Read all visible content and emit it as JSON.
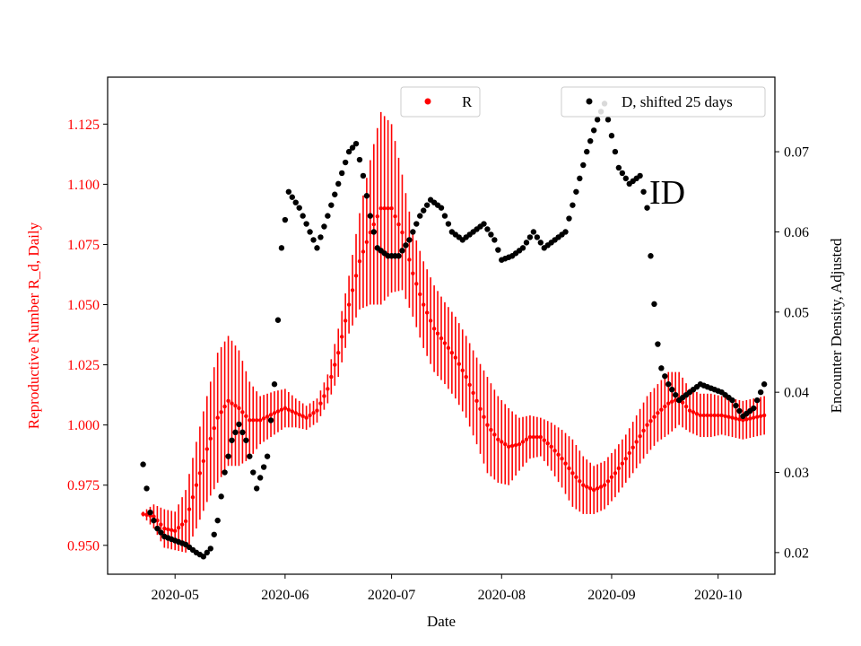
{
  "chart_data": {
    "type": "scatter",
    "title": "",
    "annotation": "ID",
    "xlabel": "Date",
    "ylabel_left": "Reproductive Number R_d, Daily",
    "ylabel_right": "Encounter Density, Adjusted",
    "x_range": [
      "2020-04-12",
      "2020-10-17"
    ],
    "x_ticks": [
      "2020-05",
      "2020-06",
      "2020-07",
      "2020-08",
      "2020-09",
      "2020-10"
    ],
    "x_tick_dates": [
      "2020-05-01",
      "2020-06-01",
      "2020-07-01",
      "2020-08-01",
      "2020-09-01",
      "2020-10-01"
    ],
    "ylim_left": [
      0.938,
      1.1445
    ],
    "yticks_left": [
      0.95,
      0.975,
      1.0,
      1.025,
      1.05,
      1.075,
      1.1,
      1.125
    ],
    "ylim_right": [
      0.0173,
      0.0793
    ],
    "yticks_right": [
      0.02,
      0.03,
      0.04,
      0.05,
      0.06,
      0.07
    ],
    "left_axis_color": "#ff0000",
    "right_axis_color": "#000000",
    "series_R_color": "#ff0000",
    "series_D_color": "#000000",
    "legend_R": {
      "label": "R",
      "placement": "top-center"
    },
    "legend_D": {
      "label": "D, shifted 25 days",
      "placement": "top-right"
    },
    "series_R": {
      "name": "R",
      "start": "2020-04-22",
      "end": "2020-10-14",
      "anchors": [
        [
          "2020-04-22",
          0.963,
          0.001
        ],
        [
          "2020-04-25",
          0.962,
          0.005
        ],
        [
          "2020-04-28",
          0.957,
          0.008
        ],
        [
          "2020-05-01",
          0.956,
          0.008
        ],
        [
          "2020-05-04",
          0.96,
          0.013
        ],
        [
          "2020-05-07",
          0.975,
          0.018
        ],
        [
          "2020-05-10",
          0.99,
          0.022
        ],
        [
          "2020-05-13",
          1.003,
          0.027
        ],
        [
          "2020-05-16",
          1.01,
          0.027
        ],
        [
          "2020-05-19",
          1.007,
          0.024
        ],
        [
          "2020-05-22",
          1.002,
          0.016
        ],
        [
          "2020-05-25",
          1.002,
          0.01
        ],
        [
          "2020-05-29",
          1.005,
          0.009
        ],
        [
          "2020-06-01",
          1.007,
          0.008
        ],
        [
          "2020-06-04",
          1.005,
          0.006
        ],
        [
          "2020-06-07",
          1.003,
          0.005
        ],
        [
          "2020-06-10",
          1.006,
          0.005
        ],
        [
          "2020-06-13",
          1.015,
          0.006
        ],
        [
          "2020-06-16",
          1.03,
          0.01
        ],
        [
          "2020-06-19",
          1.05,
          0.012
        ],
        [
          "2020-06-22",
          1.068,
          0.02
        ],
        [
          "2020-06-25",
          1.08,
          0.03
        ],
        [
          "2020-06-28",
          1.09,
          0.04
        ],
        [
          "2020-07-01",
          1.09,
          0.035
        ],
        [
          "2020-07-04",
          1.08,
          0.024
        ],
        [
          "2020-07-07",
          1.063,
          0.018
        ],
        [
          "2020-07-10",
          1.05,
          0.018
        ],
        [
          "2020-07-13",
          1.04,
          0.018
        ],
        [
          "2020-07-16",
          1.034,
          0.017
        ],
        [
          "2020-07-19",
          1.028,
          0.017
        ],
        [
          "2020-07-22",
          1.02,
          0.017
        ],
        [
          "2020-07-25",
          1.01,
          0.018
        ],
        [
          "2020-07-28",
          1.0,
          0.02
        ],
        [
          "2020-07-31",
          0.994,
          0.018
        ],
        [
          "2020-08-03",
          0.991,
          0.016
        ],
        [
          "2020-08-06",
          0.992,
          0.011
        ],
        [
          "2020-08-09",
          0.995,
          0.009
        ],
        [
          "2020-08-12",
          0.995,
          0.008
        ],
        [
          "2020-08-15",
          0.991,
          0.01
        ],
        [
          "2020-08-18",
          0.986,
          0.012
        ],
        [
          "2020-08-21",
          0.98,
          0.014
        ],
        [
          "2020-08-24",
          0.975,
          0.012
        ],
        [
          "2020-08-27",
          0.973,
          0.01
        ],
        [
          "2020-08-30",
          0.975,
          0.01
        ],
        [
          "2020-09-02",
          0.98,
          0.01
        ],
        [
          "2020-09-05",
          0.986,
          0.01
        ],
        [
          "2020-09-08",
          0.993,
          0.011
        ],
        [
          "2020-09-11",
          1.0,
          0.012
        ],
        [
          "2020-09-14",
          1.005,
          0.012
        ],
        [
          "2020-09-17",
          1.009,
          0.013
        ],
        [
          "2020-09-20",
          1.011,
          0.011
        ],
        [
          "2020-09-23",
          1.006,
          0.009
        ],
        [
          "2020-09-26",
          1.004,
          0.009
        ],
        [
          "2020-09-29",
          1.004,
          0.009
        ],
        [
          "2020-10-02",
          1.004,
          0.008
        ],
        [
          "2020-10-05",
          1.003,
          0.008
        ],
        [
          "2020-10-08",
          1.002,
          0.008
        ],
        [
          "2020-10-11",
          1.003,
          0.008
        ],
        [
          "2020-10-14",
          1.004,
          0.008
        ]
      ]
    },
    "series_D": {
      "name": "D, shifted 25 days",
      "start": "2020-04-22",
      "end": "2020-10-14",
      "anchors": [
        [
          "2020-04-22",
          0.031
        ],
        [
          "2020-04-23",
          0.028
        ],
        [
          "2020-04-24",
          0.025
        ],
        [
          "2020-04-26",
          0.023
        ],
        [
          "2020-04-28",
          0.022
        ],
        [
          "2020-05-01",
          0.0215
        ],
        [
          "2020-05-04",
          0.021
        ],
        [
          "2020-05-07",
          0.02
        ],
        [
          "2020-05-09",
          0.0195
        ],
        [
          "2020-05-11",
          0.0205
        ],
        [
          "2020-05-13",
          0.024
        ],
        [
          "2020-05-15",
          0.03
        ],
        [
          "2020-05-17",
          0.034
        ],
        [
          "2020-05-19",
          0.036
        ],
        [
          "2020-05-21",
          0.034
        ],
        [
          "2020-05-24",
          0.028
        ],
        [
          "2020-05-27",
          0.032
        ],
        [
          "2020-05-29",
          0.041
        ],
        [
          "2020-05-30",
          0.049
        ],
        [
          "2020-05-31",
          0.058
        ],
        [
          "2020-06-02",
          0.065
        ],
        [
          "2020-06-05",
          0.063
        ],
        [
          "2020-06-08",
          0.06
        ],
        [
          "2020-06-10",
          0.058
        ],
        [
          "2020-06-13",
          0.062
        ],
        [
          "2020-06-16",
          0.066
        ],
        [
          "2020-06-19",
          0.07
        ],
        [
          "2020-06-21",
          0.071
        ],
        [
          "2020-06-23",
          0.067
        ],
        [
          "2020-06-25",
          0.062
        ],
        [
          "2020-06-27",
          0.058
        ],
        [
          "2020-06-30",
          0.057
        ],
        [
          "2020-07-03",
          0.057
        ],
        [
          "2020-07-06",
          0.059
        ],
        [
          "2020-07-09",
          0.062
        ],
        [
          "2020-07-12",
          0.064
        ],
        [
          "2020-07-15",
          0.063
        ],
        [
          "2020-07-18",
          0.06
        ],
        [
          "2020-07-21",
          0.059
        ],
        [
          "2020-07-24",
          0.06
        ],
        [
          "2020-07-27",
          0.061
        ],
        [
          "2020-07-30",
          0.059
        ],
        [
          "2020-08-01",
          0.0565
        ],
        [
          "2020-08-04",
          0.057
        ],
        [
          "2020-08-07",
          0.058
        ],
        [
          "2020-08-10",
          0.06
        ],
        [
          "2020-08-13",
          0.058
        ],
        [
          "2020-08-16",
          0.059
        ],
        [
          "2020-08-19",
          0.06
        ],
        [
          "2020-08-22",
          0.065
        ],
        [
          "2020-08-25",
          0.07
        ],
        [
          "2020-08-28",
          0.074
        ],
        [
          "2020-08-30",
          0.076
        ],
        [
          "2020-09-01",
          0.072
        ],
        [
          "2020-09-03",
          0.068
        ],
        [
          "2020-09-06",
          0.066
        ],
        [
          "2020-09-09",
          0.067
        ],
        [
          "2020-09-11",
          0.063
        ],
        [
          "2020-09-12",
          0.057
        ],
        [
          "2020-09-13",
          0.051
        ],
        [
          "2020-09-14",
          0.046
        ],
        [
          "2020-09-15",
          0.043
        ],
        [
          "2020-09-17",
          0.041
        ],
        [
          "2020-09-20",
          0.039
        ],
        [
          "2020-09-23",
          0.04
        ],
        [
          "2020-09-26",
          0.041
        ],
        [
          "2020-09-29",
          0.0405
        ],
        [
          "2020-10-02",
          0.04
        ],
        [
          "2020-10-05",
          0.039
        ],
        [
          "2020-10-08",
          0.037
        ],
        [
          "2020-10-11",
          0.038
        ],
        [
          "2020-10-13",
          0.04
        ],
        [
          "2020-10-14",
          0.041
        ]
      ]
    }
  }
}
